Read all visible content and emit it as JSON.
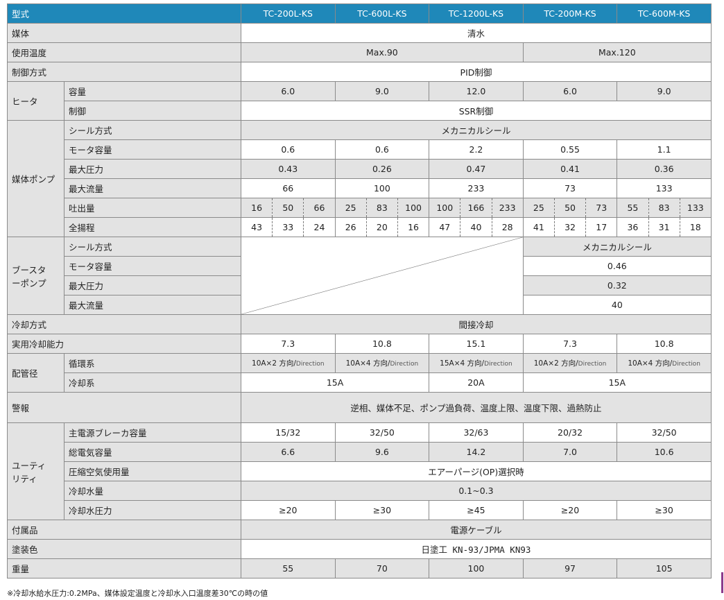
{
  "header": {
    "label": "型式",
    "models": [
      "TC-200L-KS",
      "TC-600L-KS",
      "TC-1200L-KS",
      "TC-200M-KS",
      "TC-600M-KS"
    ]
  },
  "medium": {
    "label": "媒体",
    "value": "清水"
  },
  "temp": {
    "label": "使用温度",
    "values": [
      "Max.90",
      "Max.120"
    ]
  },
  "control_method": {
    "label": "制御方式",
    "value": "PID制御"
  },
  "heater": {
    "label": "ヒータ",
    "capacity_label": "容量",
    "capacity": [
      "6.0",
      "9.0",
      "12.0",
      "6.0",
      "9.0"
    ],
    "control_label": "制御",
    "control": "SSR制御"
  },
  "pump": {
    "label": "媒体ポンプ",
    "seal_label": "シール方式",
    "seal": "メカニカルシール",
    "motor_label": "モータ容量",
    "motor": [
      "0.6",
      "0.6",
      "2.2",
      "0.55",
      "1.1"
    ],
    "pressure_label": "最大圧力",
    "pressure": [
      "0.43",
      "0.26",
      "0.47",
      "0.41",
      "0.36"
    ],
    "flow_label": "最大流量",
    "flow": [
      "66",
      "100",
      "233",
      "73",
      "133"
    ],
    "discharge_label": "吐出量",
    "discharge": [
      "16",
      "50",
      "66",
      "25",
      "83",
      "100",
      "100",
      "166",
      "233",
      "25",
      "50",
      "73",
      "55",
      "83",
      "133"
    ],
    "head_label": "全揚程",
    "head": [
      "43",
      "33",
      "24",
      "26",
      "20",
      "16",
      "47",
      "40",
      "28",
      "41",
      "32",
      "17",
      "36",
      "31",
      "18"
    ]
  },
  "booster": {
    "label1": "ブースタ",
    "label2": "ーポンプ",
    "seal_label": "シール方式",
    "seal": "メカニカルシール",
    "motor_label": "モータ容量",
    "motor": "0.46",
    "pressure_label": "最大圧力",
    "pressure": "0.32",
    "flow_label": "最大流量",
    "flow": "40"
  },
  "cooling_method": {
    "label": "冷却方式",
    "value": "間接冷却"
  },
  "cooling_capacity": {
    "label": "実用冷却能力",
    "values": [
      "7.3",
      "10.8",
      "15.1",
      "7.3",
      "10.8"
    ]
  },
  "piping": {
    "label": "配管径",
    "circ_label": "循環系",
    "circ": [
      [
        "10A×2 方向/",
        "Direction"
      ],
      [
        "10A×4 方向/",
        "Direction"
      ],
      [
        "15A×4 方向/",
        "Direction"
      ],
      [
        "10A×2 方向/",
        "Direction"
      ],
      [
        "10A×4 方向/",
        "Direction"
      ]
    ],
    "cool_label": "冷却系",
    "cool": [
      "15A",
      "20A",
      "15A"
    ]
  },
  "alarm": {
    "label": "警報",
    "value": "逆相、媒体不足、ポンプ過負荷、温度上限、温度下限、過熱防止"
  },
  "utility": {
    "label1": "ユーティ",
    "label2": "リティ",
    "breaker_label": "主電源ブレーカ容量",
    "breaker": [
      "15/32",
      "32/50",
      "32/63",
      "20/32",
      "32/50"
    ],
    "power_label": "総電気容量",
    "power": [
      "6.6",
      "9.6",
      "14.2",
      "7.0",
      "10.6"
    ],
    "air_label": "圧縮空気使用量",
    "air": "エアーパージ(OP)選択時",
    "water_label": "冷却水量",
    "water": "0.1~0.3",
    "water_pressure_label": "冷却水圧力",
    "water_pressure": [
      "≥20",
      "≥30",
      "≥45",
      "≥20",
      "≥30"
    ]
  },
  "accessory": {
    "label": "付属品",
    "value": "電源ケーブル"
  },
  "paint": {
    "label": "塗装色",
    "value": "日塗工 KN-93/JPMA KN93"
  },
  "weight": {
    "label": "重量",
    "values": [
      "55",
      "70",
      "100",
      "97",
      "105"
    ]
  },
  "footnote": "※冷却水給水圧力:0.2MPa、媒体設定温度と冷却水入口温度差30℃の時の値"
}
